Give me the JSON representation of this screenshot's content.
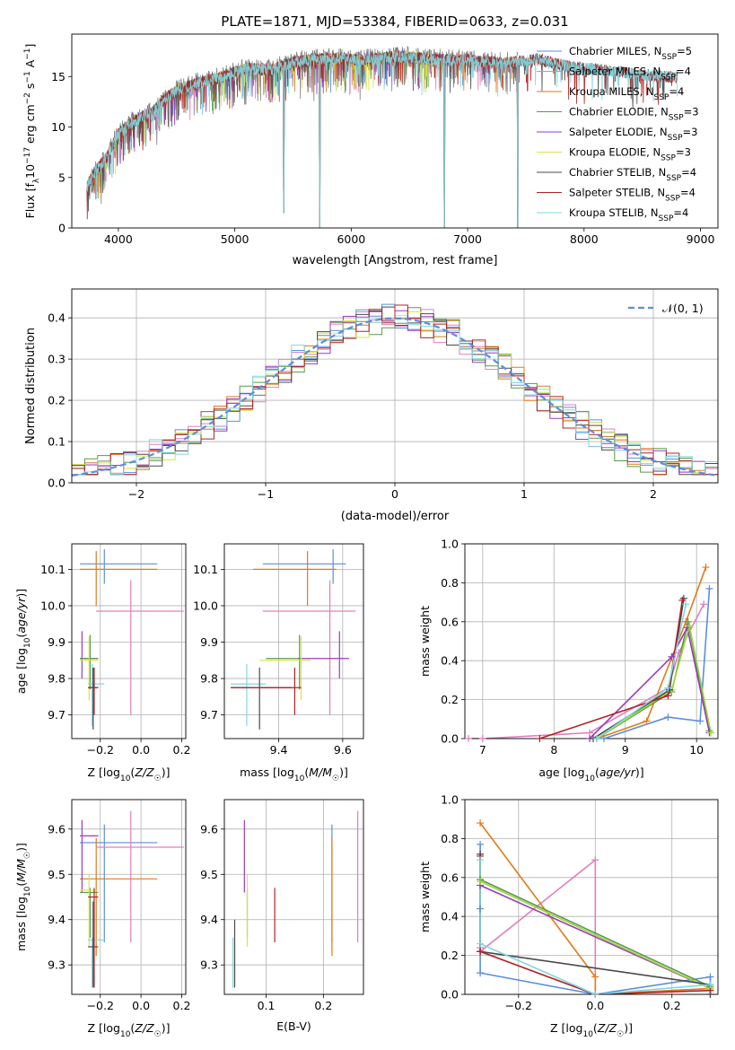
{
  "figure_title": "PLATE=1871, MJD=53384, FIBERID=0633, z=0.031",
  "colors": {
    "Chabrier MILES": "#5b8ee0",
    "Salpeter MILES": "#e07fbf",
    "Kroupa MILES": "#e07b1a",
    "Chabrier ELODIE": "#5a9a4a",
    "Salpeter ELODIE": "#9a3bbf",
    "Kroupa ELODIE": "#d9e44a",
    "Chabrier STELIB": "#4a4a4a",
    "Salpeter STELIB": "#b22222",
    "Kroupa STELIB": "#7fd8e0",
    "data": "#808080",
    "normal": "#5b8ee0",
    "bright_green": "#9ad93a"
  },
  "chart_data": [
    {
      "id": "spectrum",
      "type": "line",
      "xlabel": "wavelength [Angstrom, rest frame]",
      "ylabel_parts": [
        "Flux [f",
        "λ",
        "10",
        "−17",
        " erg cm",
        "−2",
        " s",
        "−1",
        " A",
        "−1",
        "]"
      ],
      "xlim": [
        3600,
        9150
      ],
      "ylim": [
        0,
        19.2
      ],
      "xticks": [
        4000,
        5000,
        6000,
        7000,
        8000,
        9000
      ],
      "yticks": [
        0,
        5,
        10,
        15
      ],
      "legend_position": "upper right",
      "legend": [
        {
          "name": "Chabrier MILES",
          "nssp": "5"
        },
        {
          "name": "Salpeter MILES",
          "nssp": "4"
        },
        {
          "name": "Kroupa MILES",
          "nssp": "4"
        },
        {
          "name": "Chabrier ELODIE",
          "nssp": "3"
        },
        {
          "name": "Salpeter ELODIE",
          "nssp": "3"
        },
        {
          "name": "Kroupa ELODIE",
          "nssp": "3"
        },
        {
          "name": "Chabrier STELIB",
          "nssp": "4"
        },
        {
          "name": "Salpeter STELIB",
          "nssp": "4"
        },
        {
          "name": "Kroupa STELIB",
          "nssp": "4"
        }
      ],
      "continuum_x": [
        3720,
        3800,
        3900,
        4000,
        4100,
        4200,
        4300,
        4400,
        4500,
        4700,
        4900,
        5100,
        5300,
        5500,
        5800,
        6100,
        6400,
        6700,
        7000,
        7300,
        7600,
        7900,
        8200,
        8500,
        8800
      ],
      "continuum_y": [
        3.8,
        5.6,
        7.0,
        9.3,
        10.3,
        11.0,
        11.5,
        12.8,
        13.6,
        14.4,
        15.0,
        15.8,
        15.6,
        16.4,
        16.8,
        16.6,
        17.0,
        16.7,
        16.6,
        16.3,
        16.7,
        15.9,
        15.6,
        15.2,
        14.9
      ],
      "data_range": [
        3730,
        7430
      ],
      "model_ranges": {
        "Chabrier MILES": [
          3730,
          7430
        ],
        "Salpeter MILES": [
          3730,
          7430
        ],
        "Kroupa MILES": [
          3730,
          7430
        ],
        "Chabrier ELODIE": [
          3730,
          6800
        ],
        "Salpeter ELODIE": [
          3730,
          6800
        ],
        "Kroupa ELODIE": [
          3730,
          6800
        ],
        "Chabrier STELIB": [
          3730,
          8800
        ],
        "Salpeter STELIB": [
          3730,
          8800
        ],
        "Kroupa STELIB": [
          3730,
          8800
        ]
      },
      "dropouts": [
        {
          "x": 5420,
          "y": 1.5
        },
        {
          "x": 5730,
          "y": 0
        },
        {
          "x": 6800,
          "y": 0
        },
        {
          "x": 7430,
          "y": 0
        }
      ]
    },
    {
      "id": "residuals",
      "type": "histogram",
      "xlabel": "(data-model)/error",
      "ylabel": "Normed distribution",
      "xlim": [
        -2.5,
        2.5
      ],
      "ylim": [
        0,
        0.47
      ],
      "xticks": [
        -2,
        -1,
        0,
        1,
        2
      ],
      "yticks": [
        0.0,
        0.1,
        0.2,
        0.3,
        0.4
      ],
      "legend_label": "𝒩(0, 1)",
      "legend_position": "upper right",
      "bin_width": 0.1
    },
    {
      "id": "age_vs_Z",
      "type": "scatter",
      "xlabel": "Z [log10(Z/Z☉)]",
      "ylabel": "age [log10(age/yr)]",
      "xlim": [
        -0.34,
        0.22
      ],
      "ylim": [
        9.635,
        10.17
      ],
      "xticks": [
        -0.2,
        0.0,
        0.2
      ],
      "yticks": [
        9.7,
        9.8,
        9.9,
        10.0,
        10.1
      ],
      "points": [
        {
          "model": "Chabrier MILES",
          "x": -0.18,
          "y": 10.115,
          "xe": [
            -0.3,
            0.08
          ],
          "ye": [
            10.06,
            10.155
          ]
        },
        {
          "model": "Kroupa MILES",
          "x": -0.22,
          "y": 10.1,
          "xe": [
            -0.3,
            0.08
          ],
          "ye": [
            10.0,
            10.15
          ]
        },
        {
          "model": "Salpeter MILES",
          "x": -0.05,
          "y": 9.985,
          "xe": [
            -0.22,
            0.21
          ],
          "ye": [
            9.7,
            10.07
          ]
        },
        {
          "model": "Salpeter ELODIE",
          "x": -0.29,
          "y": 9.855,
          "xe": [
            -0.3,
            -0.21
          ],
          "ye": [
            9.8,
            9.93
          ]
        },
        {
          "model": "Chabrier ELODIE",
          "x": -0.25,
          "y": 9.855,
          "xe": [
            -0.3,
            -0.21
          ],
          "ye": [
            9.77,
            9.92
          ]
        },
        {
          "model": "Kroupa ELODIE",
          "x": -0.255,
          "y": 9.85,
          "xe": [
            -0.3,
            -0.21
          ],
          "ye": [
            9.74,
            9.915
          ]
        },
        {
          "model": "Kroupa STELIB",
          "x": -0.24,
          "y": 9.785,
          "xe": [
            -0.26,
            -0.18
          ],
          "ye": [
            9.67,
            9.84
          ]
        },
        {
          "model": "Chabrier STELIB",
          "x": -0.235,
          "y": 9.775,
          "xe": [
            -0.26,
            -0.21
          ],
          "ye": [
            9.66,
            9.83
          ]
        },
        {
          "model": "Salpeter STELIB",
          "x": -0.23,
          "y": 9.775,
          "xe": [
            -0.26,
            -0.21
          ],
          "ye": [
            9.7,
            9.83
          ]
        }
      ]
    },
    {
      "id": "age_vs_mass",
      "type": "scatter",
      "xlabel": "mass [log10(M/M☉)]",
      "ylabel": "",
      "xlim": [
        9.23,
        9.665
      ],
      "ylim": [
        9.635,
        10.17
      ],
      "xticks": [
        9.4,
        9.6
      ],
      "yticks": [
        9.7,
        9.8,
        9.9,
        10.0,
        10.1
      ],
      "points": [
        {
          "model": "Chabrier MILES",
          "x": 9.57,
          "y": 10.115,
          "xe": [
            9.35,
            9.61
          ],
          "ye": [
            10.06,
            10.155
          ]
        },
        {
          "model": "Kroupa MILES",
          "x": 9.49,
          "y": 10.1,
          "xe": [
            9.32,
            9.58
          ],
          "ye": [
            10.0,
            10.15
          ]
        },
        {
          "model": "Salpeter MILES",
          "x": 9.56,
          "y": 9.985,
          "xe": [
            9.35,
            9.64
          ],
          "ye": [
            9.7,
            10.07
          ]
        },
        {
          "model": "Salpeter ELODIE",
          "x": 9.59,
          "y": 9.855,
          "xe": [
            9.46,
            9.62
          ],
          "ye": [
            9.8,
            9.93
          ]
        },
        {
          "model": "Chabrier ELODIE",
          "x": 9.465,
          "y": 9.855,
          "xe": [
            9.36,
            9.47
          ],
          "ye": [
            9.77,
            9.92
          ]
        },
        {
          "model": "Kroupa ELODIE",
          "x": 9.47,
          "y": 9.85,
          "xe": [
            9.34,
            9.5
          ],
          "ye": [
            9.74,
            9.915
          ]
        },
        {
          "model": "Kroupa STELIB",
          "x": 9.3,
          "y": 9.785,
          "xe": [
            9.25,
            9.36
          ],
          "ye": [
            9.67,
            9.84
          ]
        },
        {
          "model": "Chabrier STELIB",
          "x": 9.34,
          "y": 9.775,
          "xe": [
            9.25,
            9.44
          ],
          "ye": [
            9.66,
            9.83
          ]
        },
        {
          "model": "Salpeter STELIB",
          "x": 9.45,
          "y": 9.775,
          "xe": [
            9.25,
            9.47
          ],
          "ye": [
            9.7,
            9.83
          ]
        }
      ]
    },
    {
      "id": "mass_weight_vs_age",
      "type": "line",
      "xlabel": "age [log10(age/yr)]",
      "ylabel": "mass weight",
      "xlim": [
        6.75,
        10.3
      ],
      "ylim": [
        0,
        1.0
      ],
      "xticks": [
        7,
        8,
        9,
        10
      ],
      "yticks": [
        0.0,
        0.2,
        0.4,
        0.6,
        0.8,
        1.0
      ],
      "series": [
        {
          "model": "Chabrier MILES",
          "x": [
            8.7,
            9.6,
            10.05,
            10.18
          ],
          "y": [
            0.0,
            0.11,
            0.09,
            0.77
          ]
        },
        {
          "model": "Salpeter MILES",
          "x": [
            6.8,
            7.0,
            8.5,
            9.6,
            9.75,
            10.1
          ],
          "y": [
            0.0,
            0.0,
            0.03,
            0.26,
            0.44,
            0.69
          ]
        },
        {
          "model": "Kroupa MILES",
          "x": [
            8.6,
            9.3,
            9.85,
            10.13
          ],
          "y": [
            0.0,
            0.09,
            0.6,
            0.88
          ]
        },
        {
          "model": "Chabrier ELODIE",
          "x": [
            8.6,
            9.65,
            9.88,
            10.18
          ],
          "y": [
            0.0,
            0.24,
            0.6,
            0.04
          ]
        },
        {
          "model": "Salpeter ELODIE",
          "x": [
            8.5,
            9.65,
            9.87,
            10.18
          ],
          "y": [
            0.0,
            0.42,
            0.57,
            0.03
          ]
        },
        {
          "model": "Kroupa ELODIE",
          "x": [
            8.6,
            9.65,
            9.9,
            10.2
          ],
          "y": [
            0.0,
            0.25,
            0.58,
            0.03
          ]
        },
        {
          "model": "Chabrier STELIB",
          "x": [
            8.55,
            9.62,
            9.82
          ],
          "y": [
            0.0,
            0.25,
            0.72
          ]
        },
        {
          "model": "Salpeter STELIB",
          "x": [
            7.8,
            9.6,
            9.8
          ],
          "y": [
            0.0,
            0.22,
            0.71
          ]
        },
        {
          "model": "Kroupa STELIB",
          "x": [
            8.6,
            9.6,
            9.85
          ],
          "y": [
            0.0,
            0.26,
            0.69
          ]
        }
      ]
    },
    {
      "id": "mass_vs_Z",
      "type": "scatter",
      "xlabel": "Z [log10(Z/Z☉)]",
      "ylabel": "mass [log10(M/M☉)]",
      "xlim": [
        -0.34,
        0.22
      ],
      "ylim": [
        9.235,
        9.665
      ],
      "xticks": [
        -0.2,
        0.0,
        0.2
      ],
      "yticks": [
        9.3,
        9.4,
        9.5,
        9.6
      ],
      "points": [
        {
          "model": "Chabrier MILES",
          "x": -0.18,
          "y": 9.57,
          "xe": [
            -0.3,
            0.08
          ],
          "ye": [
            9.35,
            9.61
          ]
        },
        {
          "model": "Kroupa MILES",
          "x": -0.22,
          "y": 9.49,
          "xe": [
            -0.3,
            0.08
          ],
          "ye": [
            9.32,
            9.58
          ]
        },
        {
          "model": "Salpeter MILES",
          "x": -0.05,
          "y": 9.56,
          "xe": [
            -0.22,
            0.21
          ],
          "ye": [
            9.35,
            9.64
          ]
        },
        {
          "model": "Salpeter ELODIE",
          "x": -0.29,
          "y": 9.585,
          "xe": [
            -0.3,
            -0.21
          ],
          "ye": [
            9.46,
            9.62
          ]
        },
        {
          "model": "Chabrier ELODIE",
          "x": -0.25,
          "y": 9.46,
          "xe": [
            -0.3,
            -0.21
          ],
          "ye": [
            9.36,
            9.47
          ]
        },
        {
          "model": "Kroupa ELODIE",
          "x": -0.255,
          "y": 9.465,
          "xe": [
            -0.3,
            -0.21
          ],
          "ye": [
            9.34,
            9.5
          ]
        },
        {
          "model": "Kroupa STELIB",
          "x": -0.24,
          "y": 9.355,
          "xe": [
            -0.26,
            -0.18
          ],
          "ye": [
            9.25,
            9.36
          ]
        },
        {
          "model": "Chabrier STELIB",
          "x": -0.235,
          "y": 9.34,
          "xe": [
            -0.26,
            -0.21
          ],
          "ye": [
            9.25,
            9.44
          ]
        },
        {
          "model": "Salpeter STELIB",
          "x": -0.23,
          "y": 9.45,
          "xe": [
            -0.26,
            -0.21
          ],
          "ye": [
            9.25,
            9.47
          ]
        }
      ]
    },
    {
      "id": "mass_vs_ebv",
      "type": "scatter",
      "xlabel": "E(B-V)",
      "ylabel": "",
      "xlim": [
        0.027,
        0.27
      ],
      "ylim": [
        9.235,
        9.665
      ],
      "xticks": [
        0.1,
        0.2
      ],
      "yticks": [
        9.3,
        9.4,
        9.5,
        9.6
      ],
      "segments": [
        {
          "model": "Chabrier MILES",
          "x": 0.215,
          "ye": [
            9.35,
            9.61
          ]
        },
        {
          "model": "Kroupa MILES",
          "x": 0.215,
          "ye": [
            9.32,
            9.58
          ]
        },
        {
          "model": "Salpeter MILES",
          "x": 0.26,
          "ye": [
            9.35,
            9.64
          ]
        },
        {
          "model": "Salpeter ELODIE",
          "x": 0.062,
          "ye": [
            9.46,
            9.62
          ]
        },
        {
          "model": "Chabrier ELODIE",
          "x": 0.067,
          "ye": [
            9.36,
            9.47
          ]
        },
        {
          "model": "Kroupa ELODIE",
          "x": 0.067,
          "ye": [
            9.34,
            9.5
          ]
        },
        {
          "model": "Kroupa STELIB",
          "x": 0.042,
          "ye": [
            9.25,
            9.36
          ]
        },
        {
          "model": "Chabrier STELIB",
          "x": 0.045,
          "ye": [
            9.25,
            9.4
          ]
        },
        {
          "model": "Salpeter STELIB",
          "x": 0.115,
          "ye": [
            9.35,
            9.47
          ]
        }
      ]
    },
    {
      "id": "mass_weight_vs_Z",
      "type": "line",
      "xlabel": "Z [log10(Z/Z☉)]",
      "ylabel": "mass weight",
      "xlim": [
        -0.34,
        0.32
      ],
      "ylim": [
        0,
        1.0
      ],
      "xticks": [
        -0.2,
        0.0,
        0.2
      ],
      "yticks": [
        0.0,
        0.2,
        0.4,
        0.6,
        0.8,
        1.0
      ],
      "series": [
        {
          "model": "Chabrier MILES",
          "x": [
            -0.3,
            -0.3,
            -0.3,
            -0.3,
            0.0,
            0.3,
            0.3
          ],
          "y": [
            0.77,
            0.44,
            0.24,
            0.11,
            0.0,
            0.09,
            0.0
          ]
        },
        {
          "model": "Salpeter MILES",
          "x": [
            -0.3,
            -0.3,
            0.0,
            0.0,
            0.3
          ],
          "y": [
            0.24,
            0.22,
            0.69,
            0.0,
            0.03
          ]
        },
        {
          "model": "Kroupa MILES",
          "x": [
            -0.3,
            0.0,
            0.0,
            0.3
          ],
          "y": [
            0.88,
            0.09,
            0.0,
            0.03
          ]
        },
        {
          "model": "Chabrier ELODIE",
          "x": [
            -0.3,
            0.3
          ],
          "y": [
            0.59,
            0.04
          ]
        },
        {
          "model": "Salpeter ELODIE",
          "x": [
            -0.3,
            0.3
          ],
          "y": [
            0.56,
            0.03
          ]
        },
        {
          "model": "Kroupa ELODIE",
          "x": [
            -0.3,
            0.3
          ],
          "y": [
            0.58,
            0.03
          ]
        },
        {
          "model": "Chabrier STELIB",
          "x": [
            -0.3,
            -0.3,
            0.3,
            0.3
          ],
          "y": [
            0.72,
            0.22,
            0.05,
            0.0
          ]
        },
        {
          "model": "Salpeter STELIB",
          "x": [
            -0.3,
            -0.3,
            0.0,
            0.3
          ],
          "y": [
            0.71,
            0.22,
            0.0,
            0.02
          ]
        },
        {
          "model": "Kroupa STELIB",
          "x": [
            -0.3,
            -0.3,
            0.0,
            0.3
          ],
          "y": [
            0.69,
            0.26,
            0.0,
            0.05
          ]
        }
      ]
    }
  ]
}
